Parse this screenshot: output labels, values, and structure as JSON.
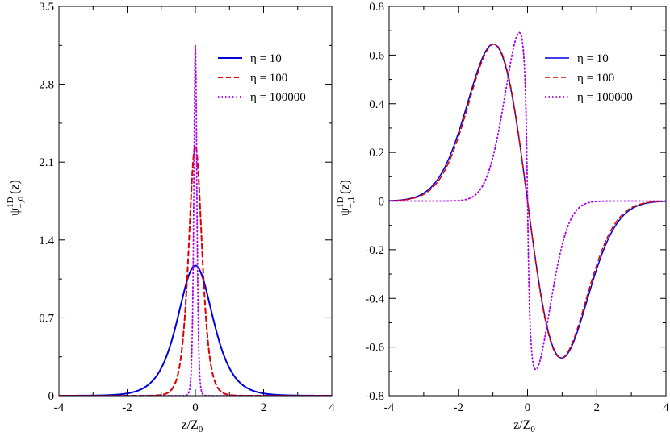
{
  "chart_data": [
    {
      "type": "line",
      "panel": "left",
      "xlabel_main": "z/Z",
      "xlabel_sub": "0",
      "ylabel_main": "ψ",
      "ylabel_sup": "1D",
      "ylabel_sub": "+,0",
      "ylabel_arg": "(z)",
      "xlim": [
        -4,
        4
      ],
      "ylim": [
        0,
        3.5
      ],
      "xticks": [
        -4,
        -2,
        0,
        2,
        4
      ],
      "xtick_labels": [
        "-4",
        "-2",
        "0",
        "2",
        "4"
      ],
      "yticks": [
        0,
        0.7,
        1.4,
        2.1,
        2.8,
        3.5
      ],
      "ytick_labels": [
        "0",
        "0.7",
        "1.4",
        "2.1",
        "2.8",
        "3.5"
      ],
      "legend_position": "top-right",
      "series": [
        {
          "name": "η = 10",
          "color": "#0000dd",
          "dash": "solid",
          "width": 2,
          "model": "sech_pow",
          "amplitude": 1.17,
          "width_param": 0.59,
          "power": 1.5
        },
        {
          "name": "η = 100",
          "color": "#dd0000",
          "dash": "6,4",
          "width": 2,
          "model": "sech_pow",
          "amplitude": 2.25,
          "width_param": 0.22,
          "power": 1.5
        },
        {
          "name": "η = 100000",
          "color": "#aa00ee",
          "dash": "1.5,3",
          "width": 1.8,
          "model": "sech_pow",
          "amplitude": 3.15,
          "width_param": 0.05,
          "power": 1.5
        }
      ]
    },
    {
      "type": "line",
      "panel": "right",
      "xlabel_main": "z/Z",
      "xlabel_sub": "0",
      "ylabel_main": "ψ",
      "ylabel_sup": "1D",
      "ylabel_sub": "+,1",
      "ylabel_arg": "(z)",
      "xlim": [
        -4,
        4
      ],
      "ylim": [
        -0.8,
        0.8
      ],
      "xticks": [
        -4,
        -2,
        0,
        2,
        4
      ],
      "xtick_labels": [
        "-4",
        "-2",
        "0",
        "2",
        "4"
      ],
      "yticks": [
        -0.8,
        -0.6,
        -0.4,
        -0.2,
        0,
        0.2,
        0.4,
        0.6,
        0.8
      ],
      "ytick_labels": [
        "-0.8",
        "-0.6",
        "-0.4",
        "-0.2",
        "0",
        "0.2",
        "0.4",
        "0.6",
        "0.8"
      ],
      "legend_position": "top-right",
      "series": [
        {
          "name": "η = 10",
          "color": "#0000dd",
          "dash": "solid",
          "width": 1.5,
          "model": "gauss_odd",
          "peak_x": -0.99,
          "peak_y": 0.645
        },
        {
          "name": "η = 100",
          "color": "#dd0000",
          "dash": "6,4",
          "width": 1.5,
          "model": "gauss_odd",
          "peak_x": -0.97,
          "peak_y": 0.645
        },
        {
          "name": "η = 100000",
          "color": "#aa00ee",
          "dash": "1.5,3",
          "width": 1.8,
          "model": "skew_odd",
          "peak_x": -0.15,
          "peak_y": 0.745
        }
      ]
    }
  ]
}
